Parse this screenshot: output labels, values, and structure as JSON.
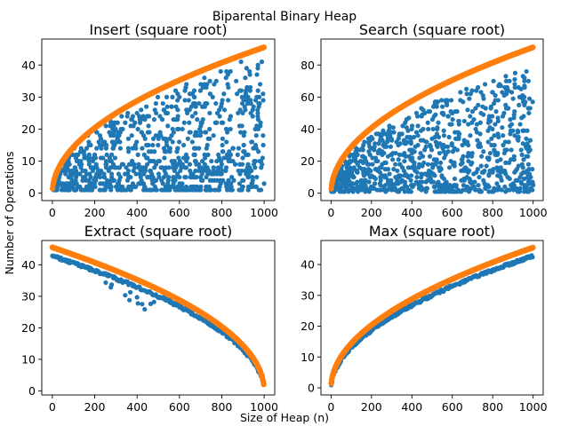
{
  "suptitle": "Biparental Binary Heap",
  "supxlabel": "Size of Heap (n)",
  "supylabel": "Number of Operations",
  "colors": {
    "scatter": "#1f77b4",
    "curve": "#ff7f0e"
  },
  "chart_data": [
    {
      "type": "scatter",
      "title": "Insert (square root)",
      "xlim": [
        -50,
        1050
      ],
      "ylim": [
        -2.3,
        48.1
      ],
      "xticks": [
        0,
        200,
        400,
        600,
        800,
        1000
      ],
      "yticks": [
        0,
        10,
        20,
        30,
        40
      ],
      "xticklabels": [
        "0",
        "200",
        "400",
        "600",
        "800",
        "1000"
      ],
      "yticklabels": [
        "0",
        "10",
        "20",
        "30",
        "40"
      ],
      "series": [
        {
          "kind": "scatter",
          "pattern": "random-below-bound",
          "bound": "1.44*sqrt(x)",
          "x_range": [
            1,
            1000
          ],
          "y_max_observed": 42
        },
        {
          "kind": "curve",
          "formula": "1.44*sqrt(x)",
          "x_range": [
            1,
            1000
          ],
          "y_at_1000": 45.5
        }
      ]
    },
    {
      "type": "scatter",
      "title": "Search (square root)",
      "xlim": [
        -50,
        1050
      ],
      "ylim": [
        -4.6,
        96.2
      ],
      "xticks": [
        0,
        200,
        400,
        600,
        800,
        1000
      ],
      "yticks": [
        0,
        20,
        40,
        60,
        80
      ],
      "xticklabels": [
        "0",
        "200",
        "400",
        "600",
        "800",
        "1000"
      ],
      "yticklabels": [
        "0",
        "20",
        "40",
        "60",
        "80"
      ],
      "series": [
        {
          "kind": "scatter",
          "pattern": "random-below-bound",
          "bound": "2.88*sqrt(x)",
          "x_range": [
            1,
            1000
          ],
          "y_max_observed": 78
        },
        {
          "kind": "curve",
          "formula": "2.88*sqrt(x)",
          "x_range": [
            1,
            1000
          ],
          "y_at_1000": 91
        }
      ]
    },
    {
      "type": "scatter",
      "title": "Extract (square root)",
      "xlim": [
        -50,
        1050
      ],
      "ylim": [
        -1.3,
        47.7
      ],
      "xticks": [
        0,
        200,
        400,
        600,
        800,
        1000
      ],
      "yticks": [
        0,
        10,
        20,
        30,
        40
      ],
      "xticklabels": [
        "0",
        "200",
        "400",
        "600",
        "800",
        "1000"
      ],
      "yticklabels": [
        "0",
        "10",
        "20",
        "30",
        "40"
      ],
      "series": [
        {
          "kind": "scatter",
          "pattern": "just-below-bound",
          "bound": "1.44*sqrt(1000-x)",
          "x_range": [
            0,
            999
          ]
        },
        {
          "kind": "curve",
          "formula": "1.44*sqrt(1000-x)",
          "x_range": [
            0,
            999
          ],
          "y_at_0": 45.5
        }
      ]
    },
    {
      "type": "scatter",
      "title": "Max (square root)",
      "xlim": [
        -50,
        1050
      ],
      "ylim": [
        -2.3,
        47.8
      ],
      "xticks": [
        0,
        200,
        400,
        600,
        800,
        1000
      ],
      "yticks": [
        0,
        10,
        20,
        30,
        40
      ],
      "xticklabels": [
        "0",
        "200",
        "400",
        "600",
        "800",
        "1000"
      ],
      "yticklabels": [
        "0",
        "10",
        "20",
        "30",
        "40"
      ],
      "series": [
        {
          "kind": "scatter",
          "pattern": "just-below-bound",
          "bound": "1.44*sqrt(x)",
          "x_range": [
            1,
            1000
          ],
          "y_at_1000": 43
        },
        {
          "kind": "curve",
          "formula": "1.44*sqrt(x)",
          "x_range": [
            1,
            1000
          ],
          "y_at_1000": 45.5
        }
      ]
    }
  ]
}
